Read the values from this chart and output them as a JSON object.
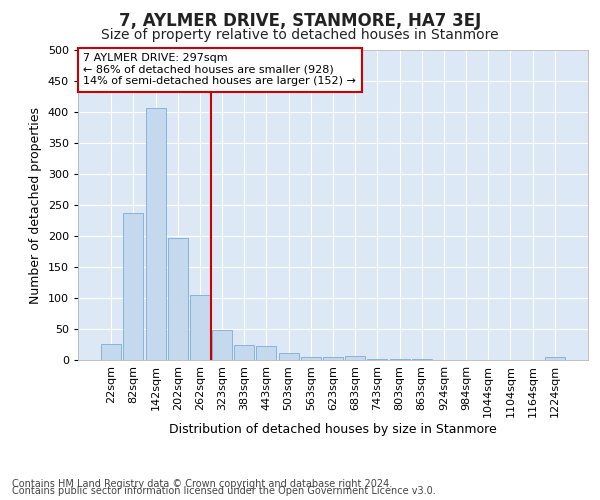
{
  "title": "7, AYLMER DRIVE, STANMORE, HA7 3EJ",
  "subtitle": "Size of property relative to detached houses in Stanmore",
  "xlabel": "Distribution of detached houses by size in Stanmore",
  "ylabel": "Number of detached properties",
  "categories": [
    "22sqm",
    "82sqm",
    "142sqm",
    "202sqm",
    "262sqm",
    "323sqm",
    "383sqm",
    "443sqm",
    "503sqm",
    "563sqm",
    "623sqm",
    "683sqm",
    "743sqm",
    "803sqm",
    "863sqm",
    "924sqm",
    "984sqm",
    "1044sqm",
    "1104sqm",
    "1164sqm",
    "1224sqm"
  ],
  "values": [
    26,
    237,
    407,
    197,
    105,
    49,
    24,
    23,
    11,
    5,
    5,
    6,
    1,
    1,
    2,
    0,
    0,
    0,
    0,
    0,
    5
  ],
  "bar_color": "#c5d9ee",
  "bar_edge_color": "#7aacd4",
  "vline_color": "#cc0000",
  "vline_x": 4.5,
  "annotation_text": "7 AYLMER DRIVE: 297sqm\n← 86% of detached houses are smaller (928)\n14% of semi-detached houses are larger (152) →",
  "annotation_box_facecolor": "#ffffff",
  "annotation_box_edgecolor": "#cc0000",
  "ylim": [
    0,
    500
  ],
  "yticks": [
    0,
    50,
    100,
    150,
    200,
    250,
    300,
    350,
    400,
    450,
    500
  ],
  "plot_bg_color": "#dce8f5",
  "footer_line1": "Contains HM Land Registry data © Crown copyright and database right 2024.",
  "footer_line2": "Contains public sector information licensed under the Open Government Licence v3.0.",
  "title_fontsize": 12,
  "subtitle_fontsize": 10,
  "xlabel_fontsize": 9,
  "ylabel_fontsize": 9,
  "tick_fontsize": 8,
  "annot_fontsize": 8,
  "footer_fontsize": 7
}
